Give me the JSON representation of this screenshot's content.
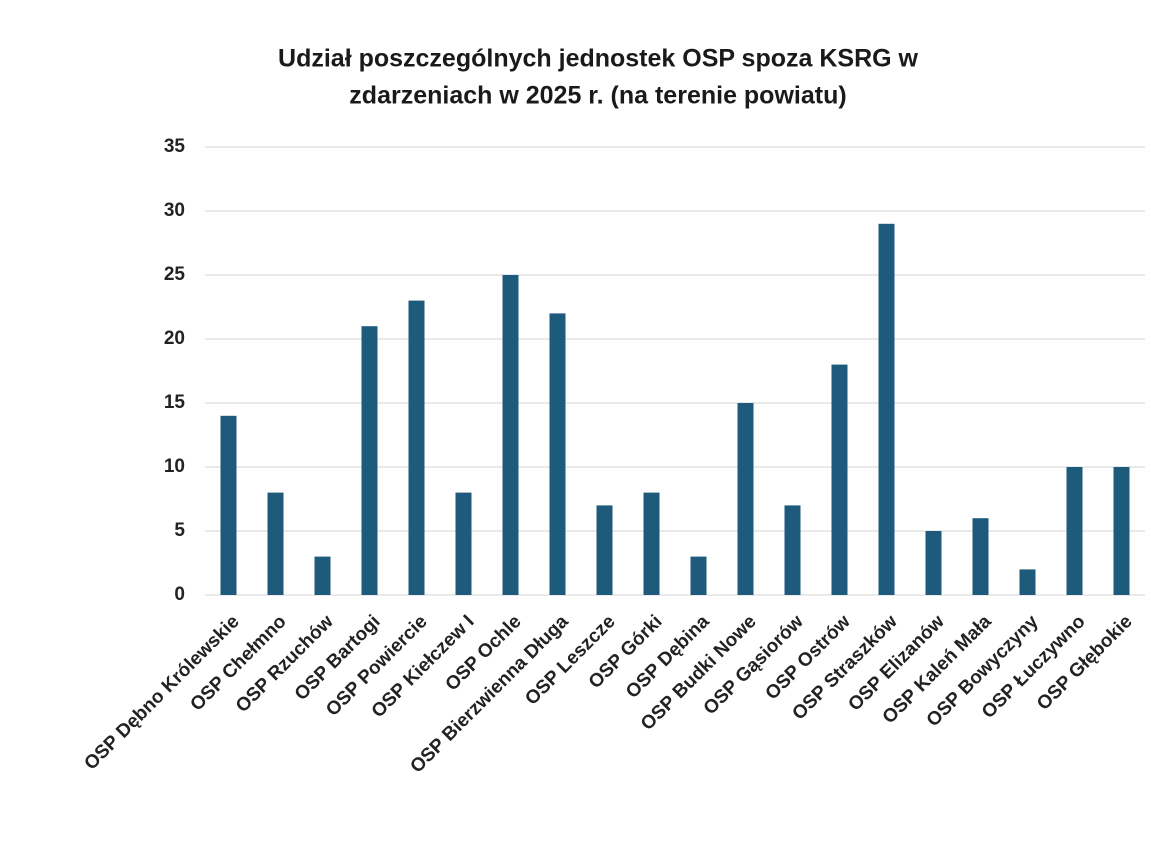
{
  "chart_data": {
    "type": "bar",
    "title": [
      "Udział poszczególnych jednostek OSP spoza KSRG w",
      "zdarzeniach w 2025 r. (na terenie powiatu)"
    ],
    "categories": [
      "OSP Dębno Królewskie",
      "OSP Chełmno",
      "OSP Rzuchów",
      "OSP Bartogi",
      "OSP Powiercie",
      "OSP Kiełczew I",
      "OSP Ochle",
      "OSP Bierzwienna Długa",
      "OSP Leszcze",
      "OSP Górki",
      "OSP Dębina",
      "OSP Budki Nowe",
      "OSP Gąsiorów",
      "OSP Ostrów",
      "OSP Straszków",
      "OSP Elizanów",
      "OSP Kaleń Mała",
      "OSP Bowyczyny",
      "OSP Łuczywno",
      "OSP Głębokie"
    ],
    "values": [
      14,
      8,
      3,
      21,
      23,
      8,
      25,
      22,
      7,
      8,
      3,
      15,
      7,
      18,
      29,
      5,
      6,
      2,
      10,
      10
    ],
    "color": "#1d5a7b",
    "ylim": [
      0,
      35
    ],
    "yticks": [
      0,
      5,
      10,
      15,
      20,
      25,
      30,
      35
    ],
    "grid": true
  }
}
